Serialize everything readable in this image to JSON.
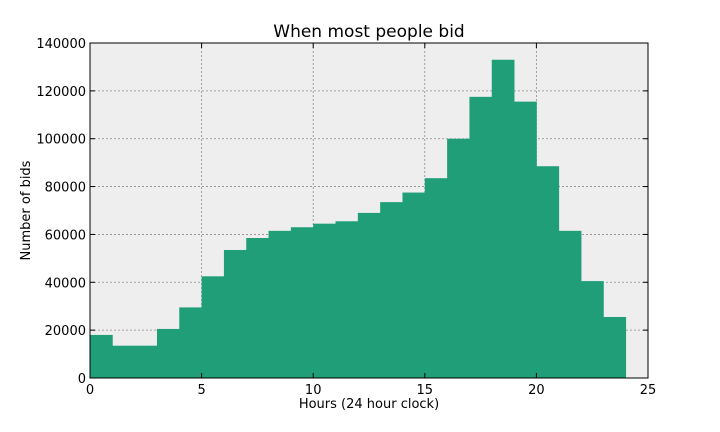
{
  "chart_data": {
    "type": "bar",
    "title": "When most people bid",
    "xlabel": "Hours (24 hour clock)",
    "ylabel": "Number of bids",
    "xlim": [
      0,
      25
    ],
    "ylim": [
      0,
      140000
    ],
    "xticks": [
      0,
      5,
      10,
      15,
      20,
      25
    ],
    "yticks": [
      0,
      20000,
      40000,
      60000,
      80000,
      100000,
      120000,
      140000
    ],
    "grid": true,
    "bin_width": 1,
    "bins": [
      {
        "start": 0,
        "value": 18000
      },
      {
        "start": 1,
        "value": 13500
      },
      {
        "start": 2,
        "value": 13500
      },
      {
        "start": 3,
        "value": 20500
      },
      {
        "start": 4,
        "value": 29500
      },
      {
        "start": 5,
        "value": 42500
      },
      {
        "start": 6,
        "value": 53500
      },
      {
        "start": 7,
        "value": 58500
      },
      {
        "start": 8,
        "value": 61500
      },
      {
        "start": 9,
        "value": 63000
      },
      {
        "start": 10,
        "value": 64500
      },
      {
        "start": 11,
        "value": 65500
      },
      {
        "start": 12,
        "value": 69000
      },
      {
        "start": 13,
        "value": 73500
      },
      {
        "start": 14,
        "value": 77500
      },
      {
        "start": 15,
        "value": 83500
      },
      {
        "start": 16,
        "value": 100000
      },
      {
        "start": 17,
        "value": 117500
      },
      {
        "start": 18,
        "value": 133000
      },
      {
        "start": 19,
        "value": 115500
      },
      {
        "start": 20,
        "value": 88500
      },
      {
        "start": 21,
        "value": 61500
      },
      {
        "start": 22,
        "value": 40500
      },
      {
        "start": 23,
        "value": 25500
      }
    ],
    "colors": {
      "bar": "#1f9e78",
      "plot_background": "#eeeeee"
    }
  }
}
